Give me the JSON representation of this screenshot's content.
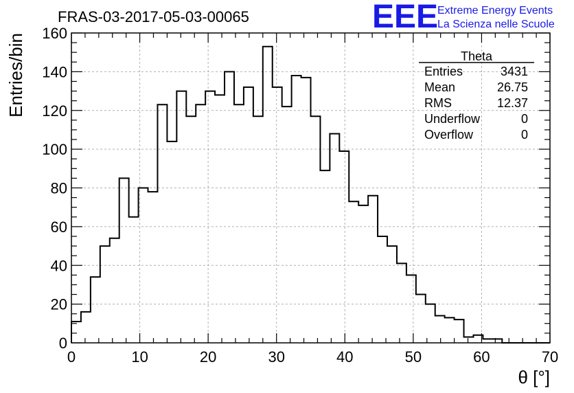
{
  "chart_data": {
    "type": "histogram",
    "title": "FRAS-03-2017-05-03-00065",
    "xlabel": "θ [°]",
    "ylabel": "Entries/bin",
    "xlim": [
      0,
      70
    ],
    "ylim": [
      0,
      160
    ],
    "grid": true,
    "x_ticks": [
      0,
      10,
      20,
      30,
      40,
      50,
      60,
      70
    ],
    "y_ticks": [
      0,
      20,
      40,
      60,
      80,
      100,
      120,
      140,
      160
    ],
    "bin_width": 1.4,
    "bin_edges_start": 0,
    "values": [
      11,
      16,
      34,
      50,
      54,
      85,
      65,
      80,
      78,
      123,
      104,
      130,
      117,
      123,
      130,
      128,
      140,
      123,
      132,
      117,
      153,
      132,
      122,
      138,
      137,
      117,
      89,
      108,
      99,
      73,
      71,
      76,
      55,
      50,
      41,
      35,
      25,
      20,
      14,
      13,
      12,
      3,
      4,
      2,
      2,
      0,
      0,
      0,
      0,
      0
    ],
    "line_color": "#000000"
  },
  "stats_box": {
    "title": "Theta",
    "rows": [
      {
        "label": "Entries",
        "value": "3431"
      },
      {
        "label": "Mean",
        "value": "26.75"
      },
      {
        "label": "RMS",
        "value": "12.37"
      },
      {
        "label": "Underflow",
        "value": "0"
      },
      {
        "label": "Overflow",
        "value": "0"
      }
    ]
  },
  "logo": {
    "mark": "EEE",
    "line1": "Extreme Energy Events",
    "line2": "La Scienza nelle Scuole",
    "color": "#1a1ae6"
  }
}
